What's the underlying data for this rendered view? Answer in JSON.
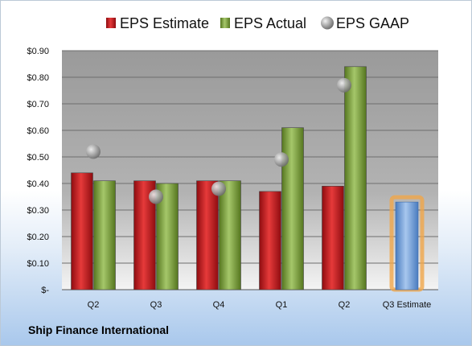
{
  "chart_data": {
    "type": "bar",
    "categories": [
      "Q2",
      "Q3",
      "Q4",
      "Q1",
      "Q2",
      "Q3 Estimate"
    ],
    "series": [
      {
        "name": "EPS Estimate",
        "type": "bar",
        "color": "#c8161d",
        "values": [
          0.44,
          0.41,
          0.41,
          0.37,
          0.39,
          null
        ]
      },
      {
        "name": "EPS Actual",
        "type": "bar",
        "color": "#7ea23c",
        "values": [
          0.41,
          0.4,
          0.41,
          0.61,
          0.84,
          null
        ]
      },
      {
        "name": "EPS GAAP",
        "type": "scatter",
        "color": "#9a9a9a",
        "values": [
          0.52,
          0.35,
          0.38,
          0.49,
          0.77,
          null
        ]
      },
      {
        "name": "",
        "type": "bar",
        "color": "#6f9fd8",
        "highlight": "#f0a64a",
        "values": [
          null,
          null,
          null,
          null,
          null,
          0.33
        ]
      }
    ],
    "y_tick_labels": [
      "$-",
      "$0.10",
      "$0.20",
      "$0.30",
      "$0.40",
      "$0.50",
      "$0.60",
      "$0.70",
      "$0.80",
      "$0.90"
    ],
    "ylim": [
      0,
      0.9
    ],
    "grid": true,
    "legend": "top"
  },
  "footer": {
    "company": "Ship Finance International"
  },
  "colors": {
    "plot_background": "#a6a6a6",
    "gridline": "#6e6e6e"
  }
}
